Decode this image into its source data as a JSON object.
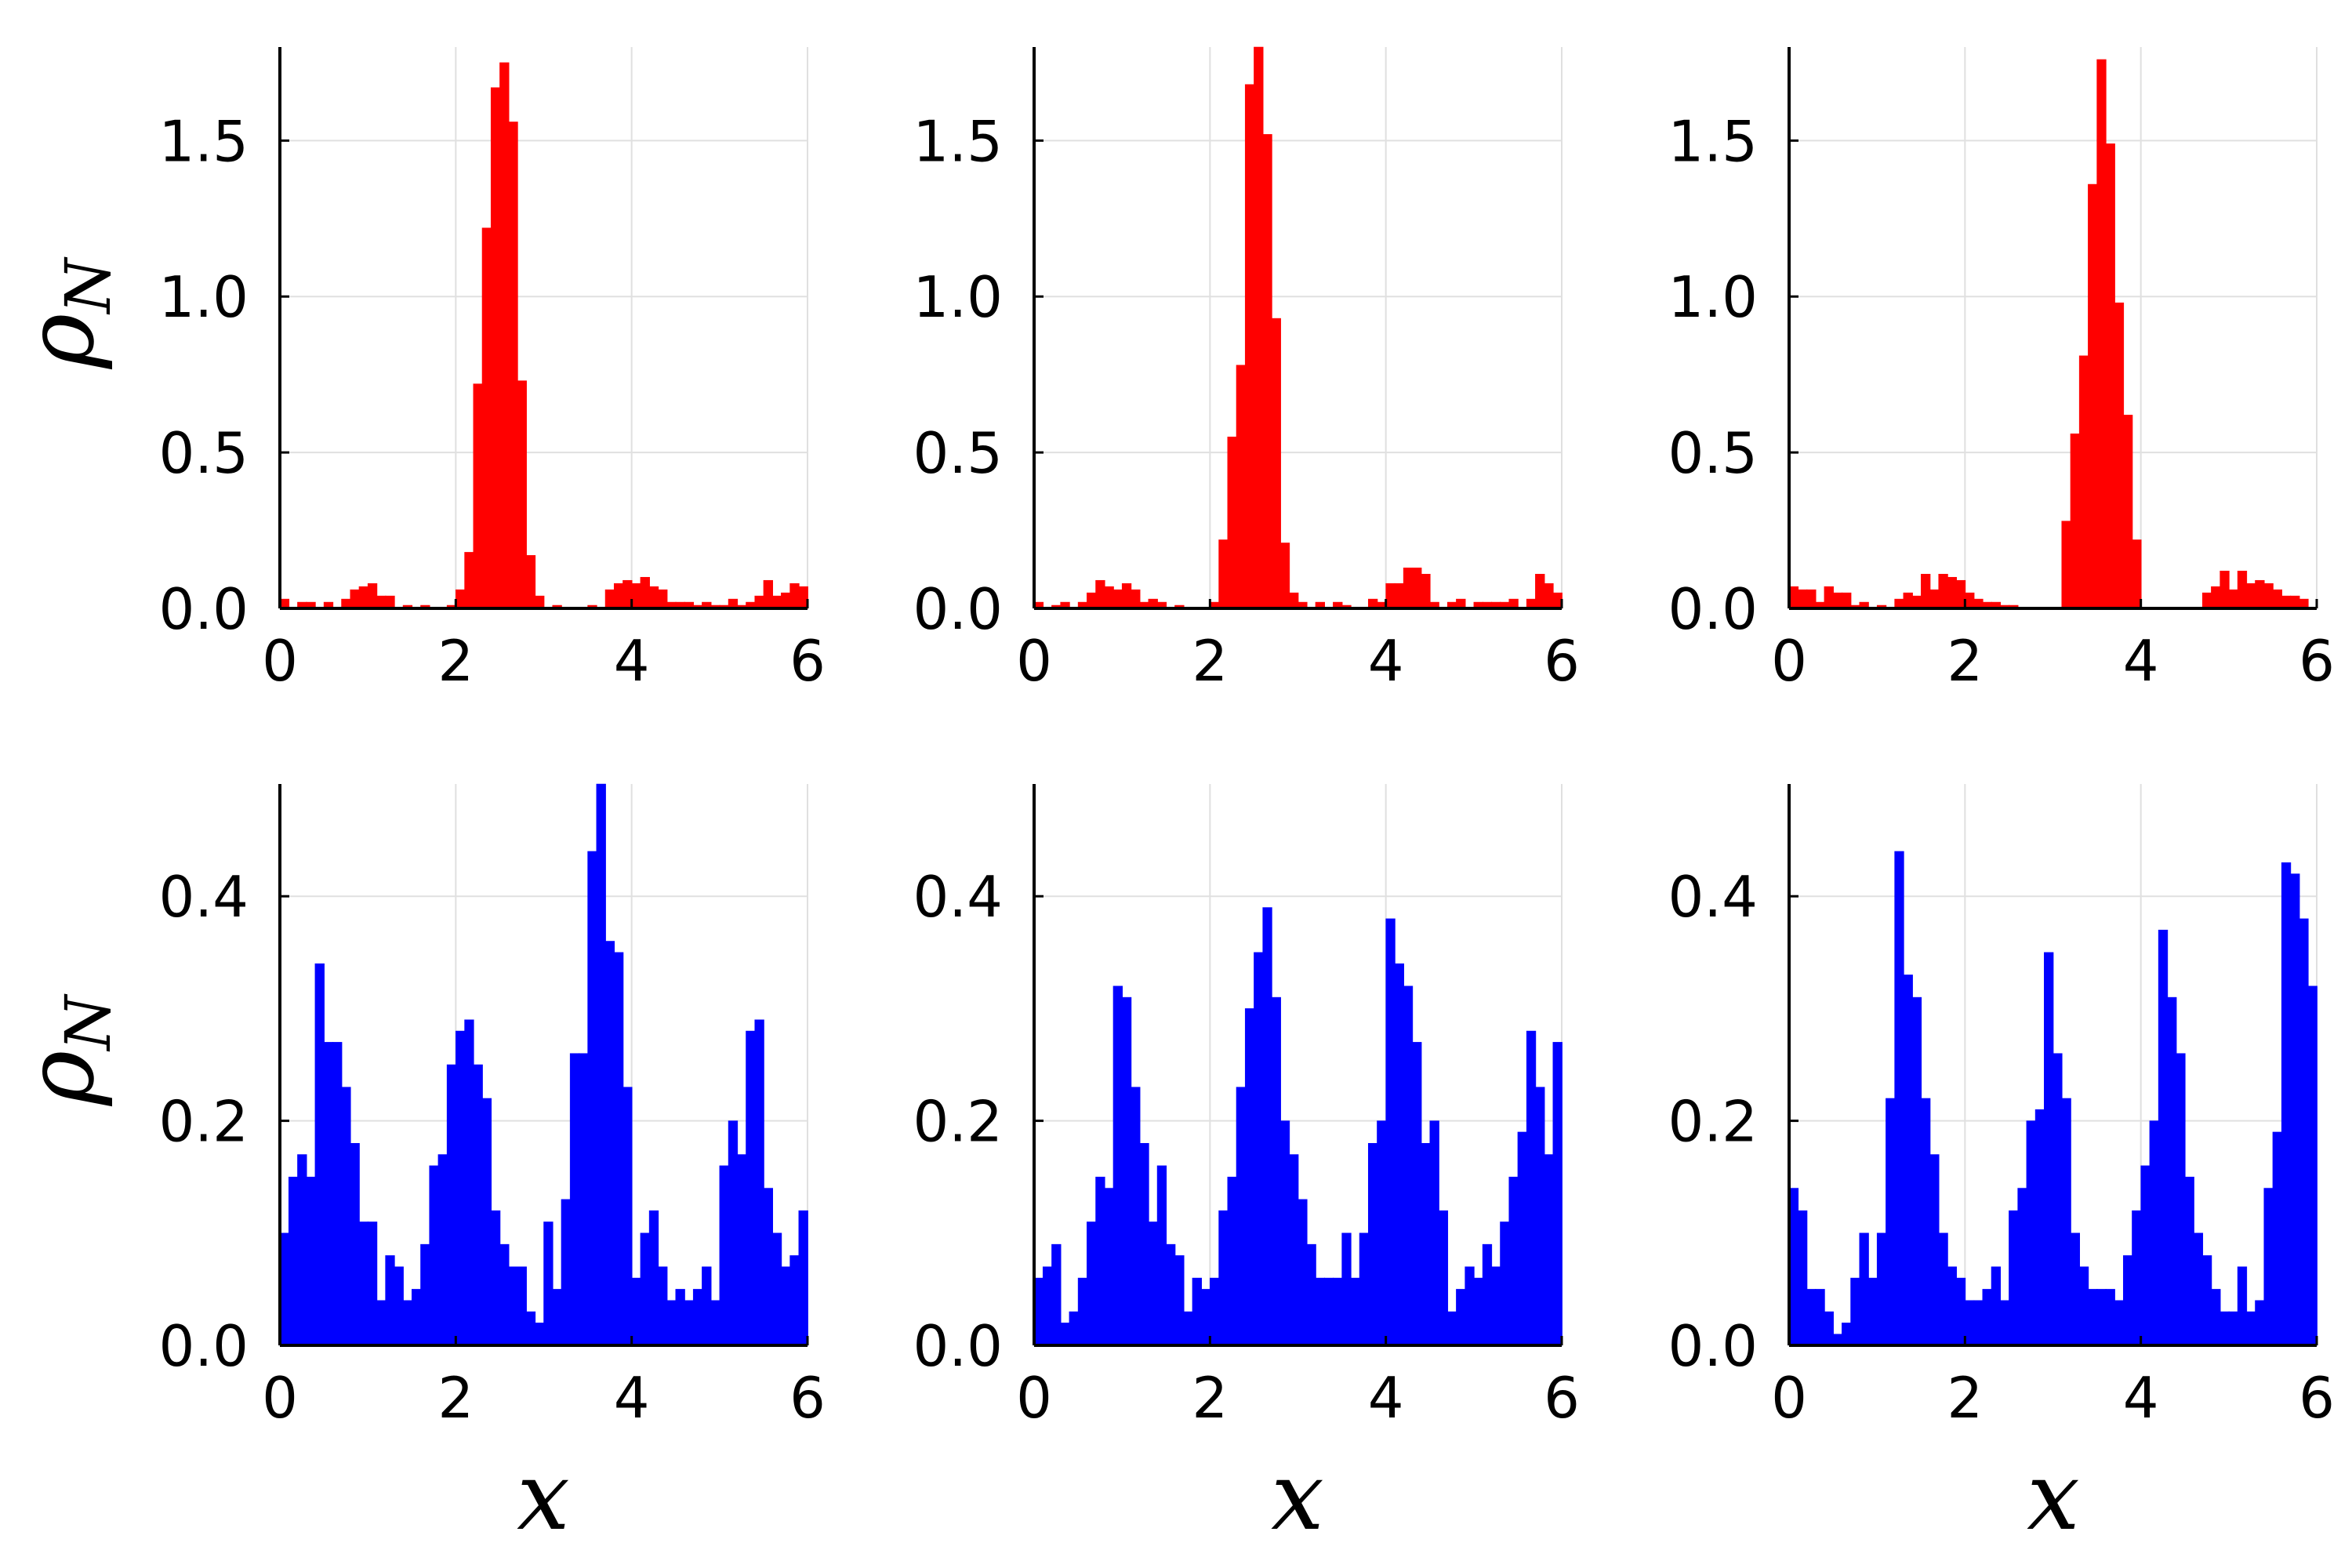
{
  "figure": {
    "row_ylabels": [
      {
        "text": "ρ",
        "sub": "N"
      },
      {
        "text": "ρ",
        "sub": "N"
      }
    ],
    "col_xlabels": [
      "x",
      "x",
      "x"
    ]
  },
  "chart_data": [
    {
      "type": "bar",
      "panel": "top-left",
      "color": "#ff0000",
      "xlabel": "",
      "ylabel": "ρ_N",
      "xlim": [
        0,
        6
      ],
      "ylim": [
        0,
        1.8
      ],
      "xticks": [
        "0",
        "2",
        "4",
        "6"
      ],
      "yticks": [
        "0.0",
        "0.5",
        "1.0",
        "1.5"
      ],
      "xtick_values": [
        0,
        2,
        4,
        6
      ],
      "ytick_values": [
        0,
        0.5,
        1.0,
        1.5
      ],
      "grid": true,
      "bin_width": 0.1,
      "x_start": 0,
      "values": [
        0.03,
        0.0,
        0.02,
        0.02,
        0.0,
        0.02,
        0.0,
        0.03,
        0.06,
        0.07,
        0.08,
        0.04,
        0.04,
        0.0,
        0.01,
        0.0,
        0.01,
        0.0,
        0.0,
        0.01,
        0.06,
        0.18,
        0.72,
        1.22,
        1.67,
        1.75,
        1.56,
        0.73,
        0.17,
        0.04,
        0.0,
        0.01,
        0.0,
        0.0,
        0.0,
        0.01,
        0.0,
        0.06,
        0.08,
        0.09,
        0.08,
        0.1,
        0.07,
        0.06,
        0.02,
        0.02,
        0.02,
        0.01,
        0.02,
        0.01,
        0.01,
        0.03,
        0.01,
        0.02,
        0.04,
        0.09,
        0.04,
        0.05,
        0.08,
        0.07
      ]
    },
    {
      "type": "bar",
      "panel": "top-middle",
      "color": "#ff0000",
      "xlabel": "",
      "ylabel": "",
      "xlim": [
        0,
        6
      ],
      "ylim": [
        0,
        1.8
      ],
      "xticks": [
        "0",
        "2",
        "4",
        "6"
      ],
      "yticks": [
        "0.0",
        "0.5",
        "1.0",
        "1.5"
      ],
      "xtick_values": [
        0,
        2,
        4,
        6
      ],
      "ytick_values": [
        0,
        0.5,
        1.0,
        1.5
      ],
      "grid": true,
      "bin_width": 0.1,
      "x_start": 0,
      "values": [
        0.02,
        0.0,
        0.01,
        0.02,
        0.0,
        0.02,
        0.05,
        0.09,
        0.07,
        0.06,
        0.08,
        0.06,
        0.02,
        0.03,
        0.02,
        0.0,
        0.01,
        0.0,
        0.0,
        0.0,
        0.02,
        0.22,
        0.55,
        0.78,
        1.68,
        1.8,
        1.52,
        0.93,
        0.21,
        0.05,
        0.02,
        0.0,
        0.02,
        0.0,
        0.02,
        0.01,
        0.0,
        0.0,
        0.03,
        0.02,
        0.08,
        0.08,
        0.13,
        0.13,
        0.11,
        0.02,
        0.0,
        0.02,
        0.03,
        0.0,
        0.02,
        0.02,
        0.02,
        0.02,
        0.03,
        0.0,
        0.03,
        0.11,
        0.08,
        0.05
      ]
    },
    {
      "type": "bar",
      "panel": "top-right",
      "color": "#ff0000",
      "xlabel": "",
      "ylabel": "",
      "xlim": [
        0,
        6
      ],
      "ylim": [
        0,
        1.8
      ],
      "xticks": [
        "0",
        "2",
        "4",
        "6"
      ],
      "yticks": [
        "0.0",
        "0.5",
        "1.0",
        "1.5"
      ],
      "xtick_values": [
        0,
        2,
        4,
        6
      ],
      "ytick_values": [
        0,
        0.5,
        1.0,
        1.5
      ],
      "grid": true,
      "bin_width": 0.1,
      "x_start": 0,
      "values": [
        0.07,
        0.06,
        0.06,
        0.02,
        0.07,
        0.05,
        0.05,
        0.01,
        0.02,
        0.0,
        0.01,
        0.0,
        0.03,
        0.05,
        0.04,
        0.11,
        0.06,
        0.11,
        0.1,
        0.09,
        0.05,
        0.03,
        0.02,
        0.02,
        0.01,
        0.01,
        0.0,
        0.0,
        0.0,
        0.0,
        0.0,
        0.28,
        0.56,
        0.81,
        1.36,
        1.76,
        1.49,
        0.98,
        0.62,
        0.22,
        0.0,
        0.0,
        0.0,
        0.0,
        0.0,
        0.0,
        0.0,
        0.05,
        0.07,
        0.12,
        0.06,
        0.12,
        0.08,
        0.09,
        0.08,
        0.06,
        0.04,
        0.04,
        0.03,
        0.0
      ]
    },
    {
      "type": "bar",
      "panel": "bottom-left",
      "color": "#0000ff",
      "xlabel": "x",
      "ylabel": "ρ_N",
      "xlim": [
        0,
        6
      ],
      "ylim": [
        0,
        0.5
      ],
      "xticks": [
        "0",
        "2",
        "4",
        "6"
      ],
      "yticks": [
        "0.0",
        "0.2",
        "0.4"
      ],
      "xtick_values": [
        0,
        2,
        4,
        6
      ],
      "ytick_values": [
        0,
        0.2,
        0.4
      ],
      "grid": true,
      "bin_width": 0.1,
      "x_start": 0,
      "values": [
        0.1,
        0.15,
        0.17,
        0.15,
        0.34,
        0.27,
        0.27,
        0.23,
        0.18,
        0.11,
        0.11,
        0.04,
        0.08,
        0.07,
        0.04,
        0.05,
        0.09,
        0.16,
        0.17,
        0.25,
        0.28,
        0.29,
        0.25,
        0.22,
        0.12,
        0.09,
        0.07,
        0.07,
        0.03,
        0.02,
        0.11,
        0.05,
        0.13,
        0.26,
        0.26,
        0.44,
        0.5,
        0.36,
        0.35,
        0.23,
        0.06,
        0.1,
        0.12,
        0.07,
        0.04,
        0.05,
        0.04,
        0.05,
        0.07,
        0.04,
        0.16,
        0.2,
        0.17,
        0.28,
        0.29,
        0.14,
        0.1,
        0.07,
        0.08,
        0.12
      ]
    },
    {
      "type": "bar",
      "panel": "bottom-middle",
      "color": "#0000ff",
      "xlabel": "x",
      "ylabel": "",
      "xlim": [
        0,
        6
      ],
      "ylim": [
        0,
        0.5
      ],
      "xticks": [
        "0",
        "2",
        "4",
        "6"
      ],
      "yticks": [
        "0.0",
        "0.2",
        "0.4"
      ],
      "xtick_values": [
        0,
        2,
        4,
        6
      ],
      "ytick_values": [
        0,
        0.2,
        0.4
      ],
      "grid": true,
      "bin_width": 0.1,
      "x_start": 0,
      "values": [
        0.06,
        0.07,
        0.09,
        0.02,
        0.03,
        0.06,
        0.11,
        0.15,
        0.14,
        0.32,
        0.31,
        0.23,
        0.18,
        0.11,
        0.16,
        0.09,
        0.08,
        0.03,
        0.06,
        0.05,
        0.06,
        0.12,
        0.15,
        0.23,
        0.3,
        0.35,
        0.39,
        0.31,
        0.2,
        0.17,
        0.13,
        0.09,
        0.06,
        0.06,
        0.06,
        0.1,
        0.06,
        0.1,
        0.18,
        0.2,
        0.38,
        0.34,
        0.32,
        0.27,
        0.18,
        0.2,
        0.12,
        0.03,
        0.05,
        0.07,
        0.06,
        0.09,
        0.07,
        0.11,
        0.15,
        0.19,
        0.28,
        0.23,
        0.17,
        0.27
      ]
    },
    {
      "type": "bar",
      "panel": "bottom-right",
      "color": "#0000ff",
      "xlabel": "x",
      "ylabel": "",
      "xlim": [
        0,
        6
      ],
      "ylim": [
        0,
        0.5
      ],
      "xticks": [
        "0",
        "2",
        "4",
        "6"
      ],
      "yticks": [
        "0.0",
        "0.2",
        "0.4"
      ],
      "xtick_values": [
        0,
        2,
        4,
        6
      ],
      "ytick_values": [
        0,
        0.2,
        0.4
      ],
      "grid": true,
      "bin_width": 0.1,
      "x_start": 0,
      "values": [
        0.14,
        0.12,
        0.05,
        0.05,
        0.03,
        0.01,
        0.02,
        0.06,
        0.1,
        0.06,
        0.1,
        0.22,
        0.44,
        0.33,
        0.31,
        0.22,
        0.17,
        0.1,
        0.07,
        0.06,
        0.04,
        0.04,
        0.05,
        0.07,
        0.04,
        0.12,
        0.14,
        0.2,
        0.21,
        0.35,
        0.26,
        0.22,
        0.1,
        0.07,
        0.05,
        0.05,
        0.05,
        0.04,
        0.08,
        0.12,
        0.16,
        0.2,
        0.37,
        0.31,
        0.26,
        0.15,
        0.1,
        0.08,
        0.05,
        0.03,
        0.03,
        0.07,
        0.03,
        0.04,
        0.14,
        0.19,
        0.43,
        0.42,
        0.38,
        0.32
      ]
    }
  ]
}
